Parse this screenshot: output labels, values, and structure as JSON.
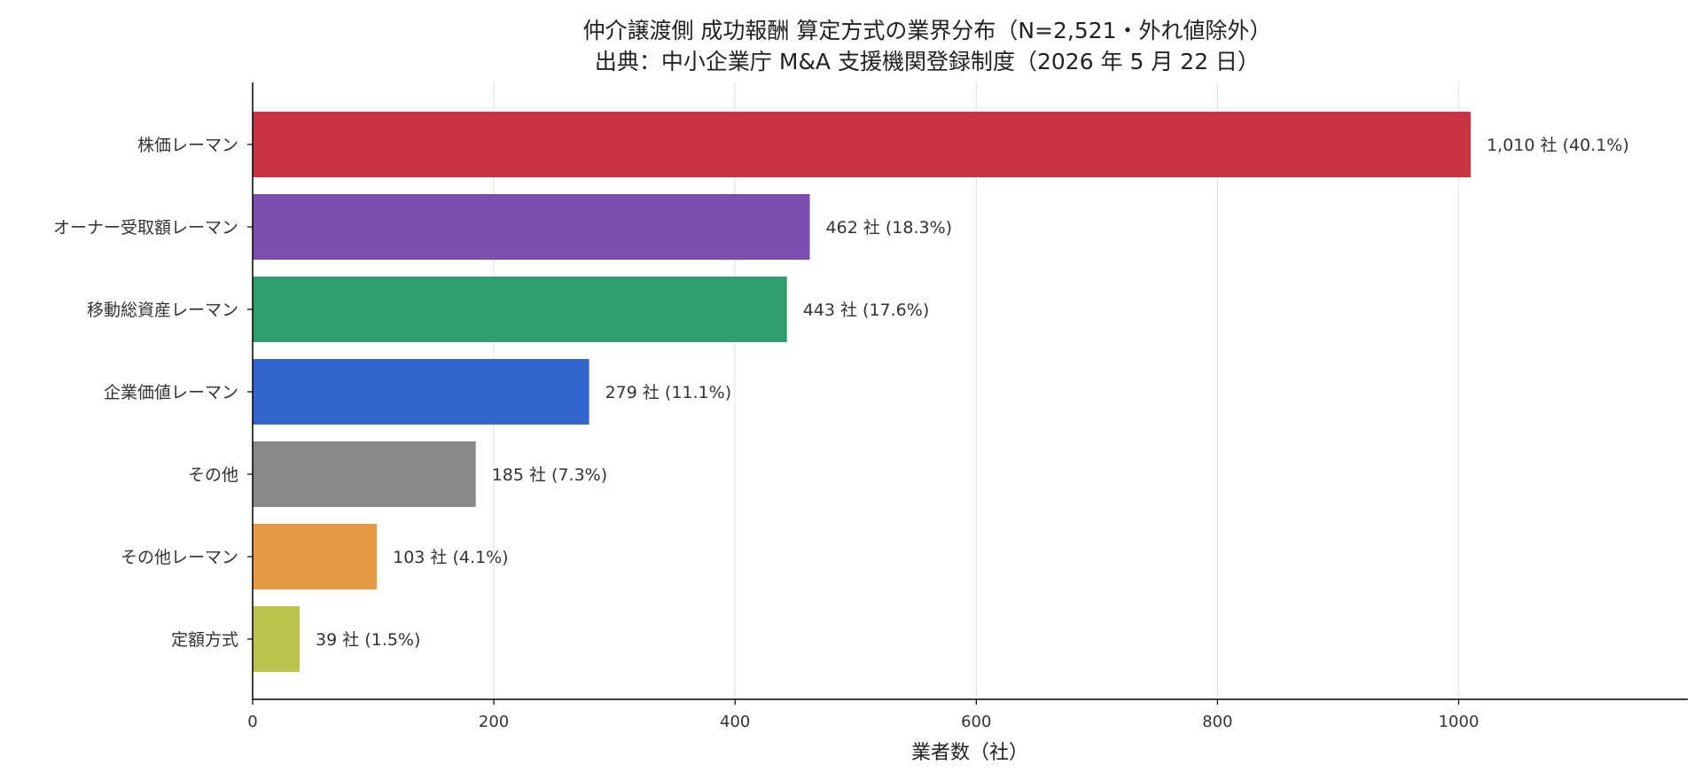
{
  "chart_data": {
    "type": "bar",
    "orientation": "horizontal",
    "title": "仲介譲渡側 成功報酬 算定方式の業界分布（N=2,521・外れ値除外）",
    "subtitle": "出典：中小企業庁 M&A 支援機関登録制度（2026 年 5 月 22 日）",
    "xlabel": "業者数（社）",
    "ylabel": "",
    "xlim": [
      0,
      1190
    ],
    "xticks": [
      0,
      200,
      400,
      600,
      800,
      1000
    ],
    "grid": "vertical",
    "categories": [
      "株価レーマン",
      "オーナー受取額レーマン",
      "移動総資産レーマン",
      "企業価値レーマン",
      "その他",
      "その他レーマン",
      "定額方式"
    ],
    "values": [
      1010,
      462,
      443,
      279,
      185,
      103,
      39
    ],
    "data_labels": [
      "1,010 社 (40.1%)",
      "462 社 (18.3%)",
      "443 社 (17.6%)",
      "279 社 (11.1%)",
      "185 社 (7.3%)",
      "103 社 (4.1%)",
      "39 社 (1.5%)"
    ],
    "colors": [
      "#cc3344",
      "#7b4fb0",
      "#2e9e70",
      "#3366cc",
      "#888888",
      "#e89944",
      "#bbc44c"
    ]
  }
}
